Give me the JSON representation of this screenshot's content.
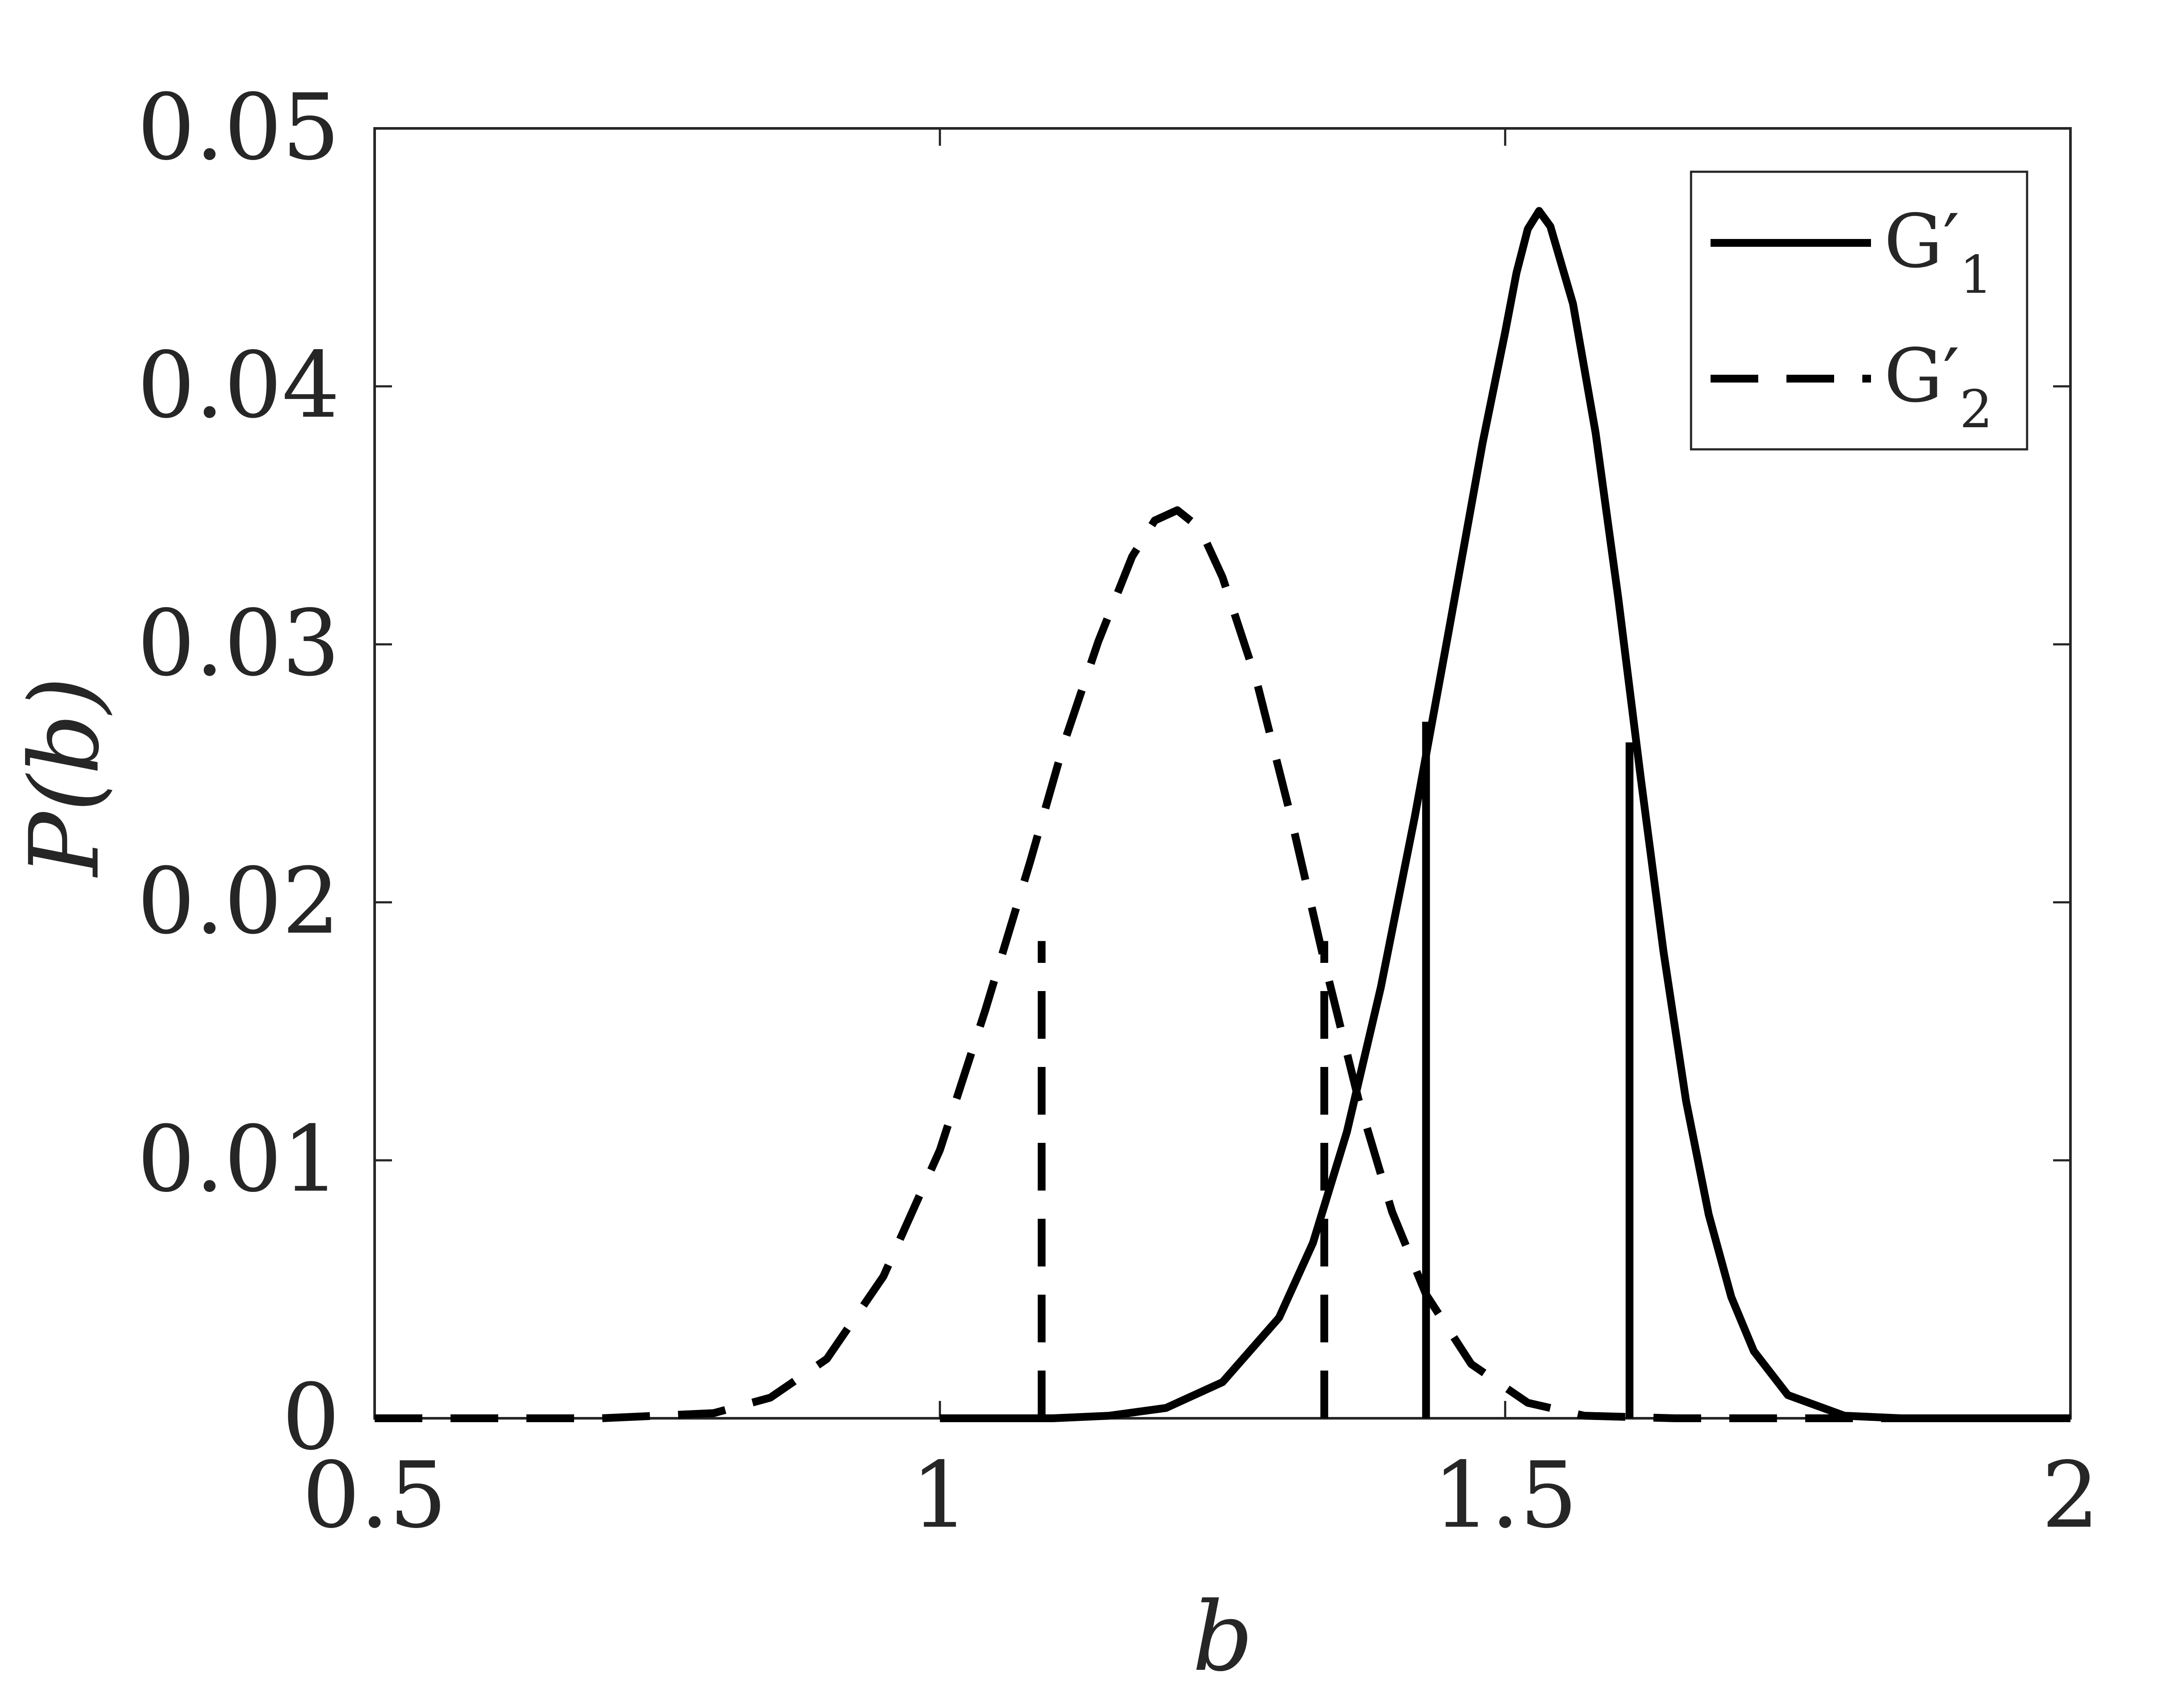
{
  "chart_data": {
    "type": "line",
    "title": "",
    "xlabel": "b",
    "ylabel": "P(b)",
    "xlim": [
      0.5,
      2
    ],
    "ylim": [
      0,
      0.05
    ],
    "xticks": [
      0.5,
      1,
      1.5,
      2
    ],
    "xtick_labels": [
      "0.5",
      "1",
      "1.5",
      "2"
    ],
    "yticks": [
      0,
      0.01,
      0.02,
      0.03,
      0.04,
      0.05
    ],
    "ytick_labels": [
      "0",
      "0.01",
      "0.02",
      "0.03",
      "0.04",
      "0.05"
    ],
    "grid": false,
    "legend_position": "top-right",
    "series": [
      {
        "name": "G′1",
        "legend_base": "G′",
        "legend_sub": "1",
        "style": "solid",
        "color": "#000000",
        "x": [
          1.0,
          1.1,
          1.15,
          1.2,
          1.25,
          1.3,
          1.33,
          1.36,
          1.39,
          1.42,
          1.45,
          1.48,
          1.5,
          1.51,
          1.52,
          1.53,
          1.54,
          1.56,
          1.58,
          1.6,
          1.62,
          1.64,
          1.66,
          1.68,
          1.7,
          1.72,
          1.75,
          1.8,
          1.85,
          1.9,
          2.0
        ],
        "y": [
          0.0,
          0.0,
          0.0001,
          0.0004,
          0.0014,
          0.0039,
          0.0068,
          0.0111,
          0.0167,
          0.0233,
          0.0305,
          0.0378,
          0.0421,
          0.0444,
          0.0461,
          0.0468,
          0.0462,
          0.0432,
          0.0382,
          0.0318,
          0.0248,
          0.0181,
          0.0123,
          0.0079,
          0.0047,
          0.0026,
          0.0009,
          0.0001,
          0.0,
          0.0,
          0.0
        ],
        "markers_x": [
          1.43,
          1.61
        ],
        "markers_y": [
          0.027,
          0.0262
        ]
      },
      {
        "name": "G′2",
        "legend_base": "G′",
        "legend_sub": "2",
        "style": "dashed",
        "color": "#000000",
        "x": [
          0.5,
          0.6,
          0.7,
          0.8,
          0.85,
          0.9,
          0.95,
          1.0,
          1.04,
          1.08,
          1.11,
          1.14,
          1.17,
          1.19,
          1.21,
          1.23,
          1.25,
          1.28,
          1.31,
          1.34,
          1.37,
          1.4,
          1.43,
          1.47,
          1.52,
          1.57,
          1.65,
          1.8,
          2.0
        ],
        "y": [
          0.0,
          0.0,
          0.0,
          0.0002,
          0.0008,
          0.0023,
          0.0055,
          0.0104,
          0.0158,
          0.0216,
          0.0262,
          0.0301,
          0.0334,
          0.0348,
          0.0352,
          0.0345,
          0.0326,
          0.0286,
          0.0234,
          0.0177,
          0.0124,
          0.008,
          0.0048,
          0.0021,
          0.0006,
          0.0001,
          0.0,
          0.0,
          0.0
        ],
        "markers_x": [
          1.09,
          1.34
        ],
        "markers_y": [
          0.0185,
          0.0185
        ]
      }
    ]
  }
}
